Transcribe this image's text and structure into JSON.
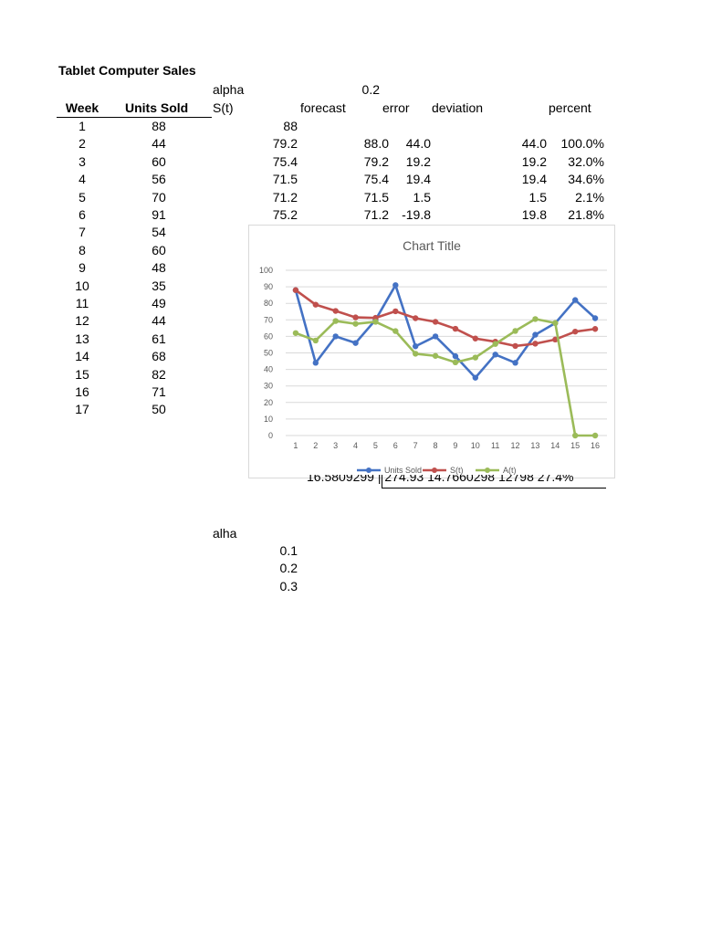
{
  "sheet": {
    "title": "Tablet Computer Sales",
    "alpha_label": "alpha",
    "alpha_value": "0.2",
    "headers": {
      "week": "Week",
      "units_sold": "Units Sold",
      "st": "S(t)",
      "forecast": "forecast",
      "error": "error",
      "deviation": "deviation",
      "percent": "percent"
    },
    "rows": [
      {
        "week": "1",
        "units": "88",
        "st": "88",
        "forecast": "",
        "error": "",
        "deviation": "",
        "percent": ""
      },
      {
        "week": "2",
        "units": "44",
        "st": "79.2",
        "forecast": "88.0",
        "error": "44.0",
        "deviation": "44.0",
        "percent": "100.0%"
      },
      {
        "week": "3",
        "units": "60",
        "st": "75.4",
        "forecast": "79.2",
        "error": "19.2",
        "deviation": "19.2",
        "percent": "32.0%"
      },
      {
        "week": "4",
        "units": "56",
        "st": "71.5",
        "forecast": "75.4",
        "error": "19.4",
        "deviation": "19.4",
        "percent": "34.6%"
      },
      {
        "week": "5",
        "units": "70",
        "st": "71.2",
        "forecast": "71.5",
        "error": "1.5",
        "deviation": "1.5",
        "percent": "2.1%"
      },
      {
        "week": "6",
        "units": "91",
        "st": "75.2",
        "forecast": "71.2",
        "error": "-19.8",
        "deviation": "19.8",
        "percent": "21.8%"
      },
      {
        "week": "7",
        "units": "54",
        "st": "",
        "forecast": "",
        "error": "",
        "deviation": "",
        "percent": ""
      },
      {
        "week": "8",
        "units": "60",
        "st": "",
        "forecast": "",
        "error": "",
        "deviation": "",
        "percent": ""
      },
      {
        "week": "9",
        "units": "48",
        "st": "",
        "forecast": "",
        "error": "",
        "deviation": "",
        "percent": ""
      },
      {
        "week": "10",
        "units": "35",
        "st": "",
        "forecast": "",
        "error": "",
        "deviation": "",
        "percent": ""
      },
      {
        "week": "11",
        "units": "49",
        "st": "",
        "forecast": "",
        "error": "",
        "deviation": "",
        "percent": ""
      },
      {
        "week": "12",
        "units": "44",
        "st": "",
        "forecast": "",
        "error": "",
        "deviation": "",
        "percent": ""
      },
      {
        "week": "13",
        "units": "61",
        "st": "",
        "forecast": "",
        "error": "",
        "deviation": "",
        "percent": ""
      },
      {
        "week": "14",
        "units": "68",
        "st": "",
        "forecast": "",
        "error": "",
        "deviation": "",
        "percent": ""
      },
      {
        "week": "15",
        "units": "82",
        "st": "",
        "forecast": "",
        "error": "",
        "deviation": "",
        "percent": ""
      },
      {
        "week": "16",
        "units": "71",
        "st": "",
        "forecast": "",
        "error": "",
        "deviation": "",
        "percent": ""
      },
      {
        "week": "17",
        "units": "50",
        "st": "",
        "forecast": "",
        "error": "",
        "deviation": "",
        "percent": ""
      }
    ],
    "summary_fragment": "16.5809299 | 274.93  14.7660298 12798     27.4%",
    "alha_label": "alha",
    "alha_values": [
      "0.1",
      "0.2",
      "0.3"
    ]
  },
  "chart_data": {
    "type": "line",
    "title": "Chart Title",
    "categories": [
      "1",
      "2",
      "3",
      "4",
      "5",
      "6",
      "7",
      "8",
      "9",
      "10",
      "11",
      "12",
      "13",
      "14",
      "15",
      "16"
    ],
    "series": [
      {
        "name": "Units Sold",
        "color": "#4472c4",
        "values": [
          88,
          44,
          60,
          56,
          70,
          91,
          54,
          60,
          48,
          35,
          49,
          44,
          61,
          68,
          82,
          71
        ]
      },
      {
        "name": "S(t)",
        "color": "#c0504d",
        "values": [
          88,
          79.2,
          75.4,
          71.5,
          71.2,
          75.2,
          71,
          68.8,
          64.6,
          58.7,
          56.8,
          54.2,
          55.6,
          58.1,
          62.9,
          64.5
        ]
      },
      {
        "name": "A(t)",
        "color": "#9bbb59",
        "values": [
          62,
          57.5,
          69.3,
          67.6,
          68.8,
          63.2,
          49.5,
          48.2,
          44.3,
          47.2,
          55.4,
          63.3,
          70.5,
          68.1,
          0,
          0
        ]
      }
    ],
    "yticks": [
      "0",
      "10",
      "20",
      "30",
      "40",
      "50",
      "60",
      "70",
      "80",
      "90",
      "100"
    ],
    "ylim": [
      0,
      100
    ],
    "grid": true,
    "legend_position": "bottom"
  }
}
